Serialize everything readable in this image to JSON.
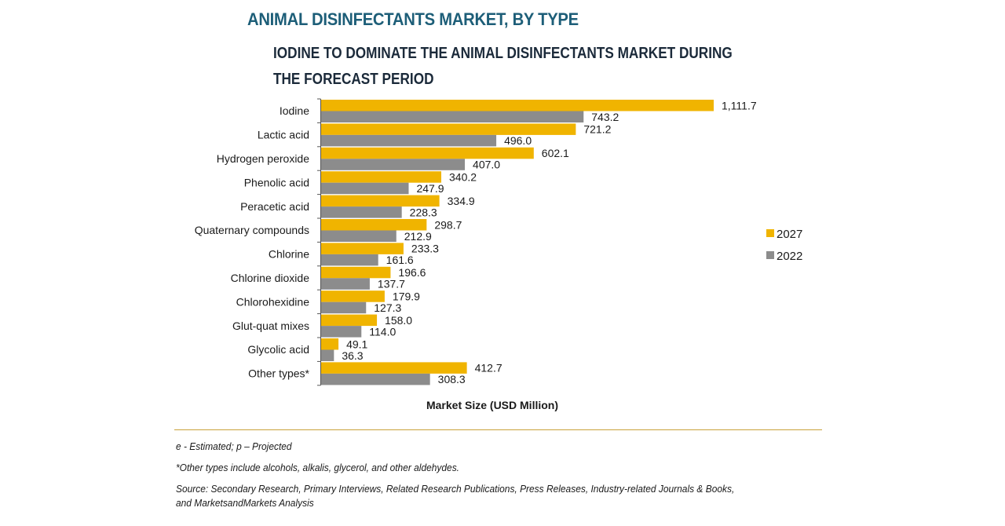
{
  "header": {
    "title": "ANIMAL DISINFECTANTS MARKET, BY TYPE",
    "subtitle_line1": "IODINE TO DOMINATE THE ANIMAL DISINFECTANTS MARKET DURING",
    "subtitle_line2": "THE FORECAST PERIOD"
  },
  "colors": {
    "series_2027": "#f0b400",
    "series_2022": "#8c8c8c",
    "title": "#1d5e78",
    "divider": "#c9a23a"
  },
  "chart_data": {
    "type": "bar",
    "orientation": "horizontal",
    "title": "ANIMAL DISINFECTANTS MARKET, BY TYPE",
    "subtitle": "IODINE TO DOMINATE THE ANIMAL DISINFECTANTS MARKET DURING THE FORECAST PERIOD",
    "categories": [
      "Iodine",
      "Lactic acid",
      "Hydrogen peroxide",
      "Phenolic acid",
      "Peracetic acid",
      "Quaternary compounds",
      "Chlorine",
      "Chlorine dioxide",
      "Chlorohexidine",
      "Glut-quat mixes",
      "Glycolic acid",
      "Other types*"
    ],
    "series": [
      {
        "name": "2027",
        "values": [
          1111.7,
          721.2,
          602.1,
          340.2,
          334.9,
          298.7,
          233.3,
          196.6,
          179.9,
          158.0,
          49.1,
          412.7
        ],
        "labels": [
          "1,111.7",
          "721.2",
          "602.1",
          "340.2",
          "334.9",
          "298.7",
          "233.3",
          "196.6",
          "179.9",
          "158.0",
          "49.1",
          "412.7"
        ]
      },
      {
        "name": "2022",
        "values": [
          743.2,
          496.0,
          407.0,
          247.9,
          228.3,
          212.9,
          161.6,
          137.7,
          127.3,
          114.0,
          36.3,
          308.3
        ],
        "labels": [
          "743.2",
          "496.0",
          "407.0",
          "247.9",
          "228.3",
          "212.9",
          "161.6",
          "137.7",
          "127.3",
          "114.0",
          "36.3",
          "308.3"
        ]
      }
    ],
    "xlabel": "Market Size (USD Million)",
    "ylabel": "",
    "xlim": [
      0,
      1111.7
    ],
    "grid": false,
    "legend": {
      "placement": "right",
      "entries": [
        "2027",
        "2022"
      ]
    }
  },
  "footnotes": {
    "estimated": "e - Estimated; p – Projected",
    "other_types": "*Other types include alcohols, alkalis, glycerol, and other aldehydes.",
    "source_line1": "Source: Secondary Research, Primary Interviews, Related Research Publications, Press Releases, Industry-related Journals & Books,",
    "source_line2": "and MarketsandMarkets Analysis"
  }
}
